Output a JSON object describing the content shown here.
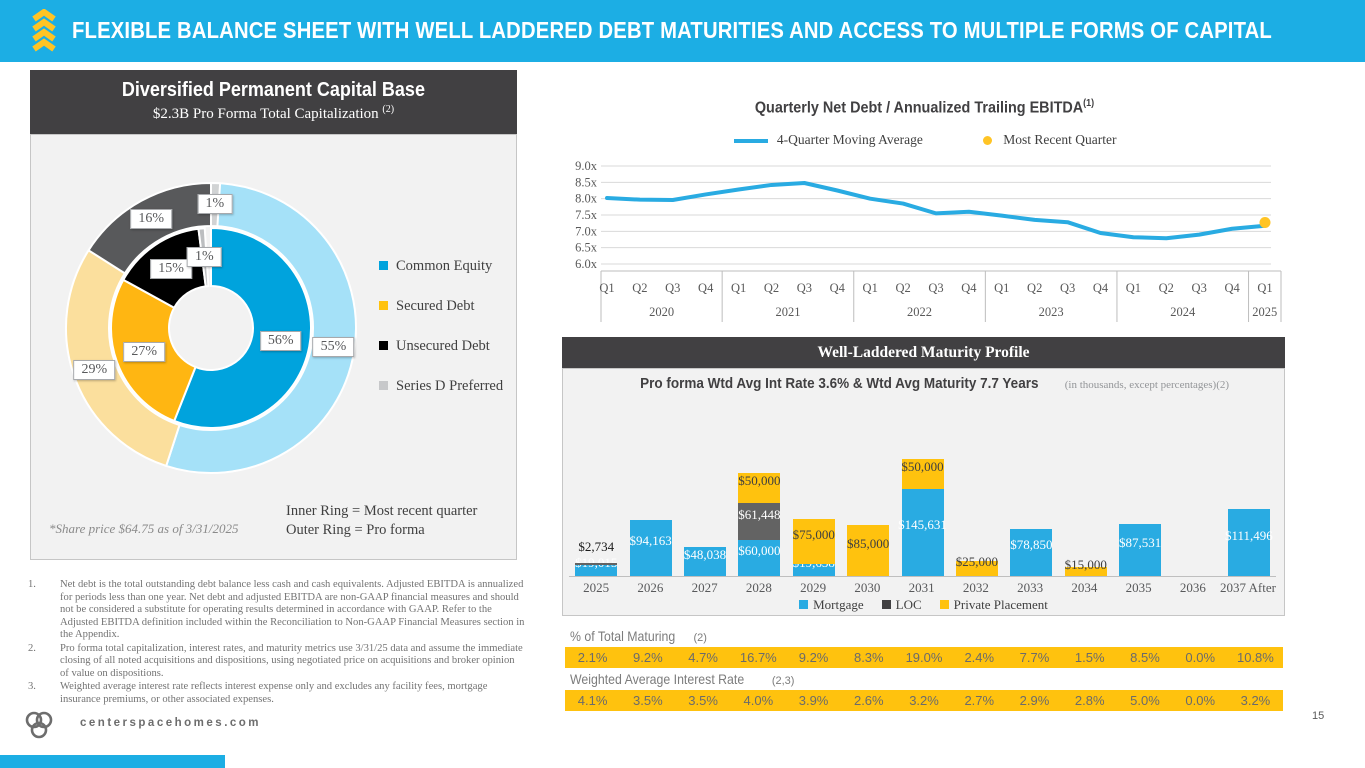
{
  "header": {
    "title": "FLEXIBLE BALANCE SHEET WITH WELL LADDERED DEBT MATURITIES AND ACCESS TO MULTIPLE FORMS OF CAPITAL"
  },
  "capital_base": {
    "title": "Diversified Permanent Capital Base",
    "subtitle": "$2.3B Pro Forma Total Capitalization",
    "subtitle_sup": "(2)",
    "share_price_note": "*Share price $64.75 as of 3/31/2025",
    "ring_note_line1": "Inner Ring = Most recent quarter",
    "ring_note_line2": "Outer Ring = Pro forma",
    "chart_data": {
      "type": "pie",
      "legend": [
        "Common Equity",
        "Secured Debt",
        "Unsecured Debt",
        "Series D Preferred"
      ],
      "legend_colors": [
        "#00A3DD",
        "#FFC20E",
        "#000000",
        "#C7C8CA"
      ],
      "rings": [
        {
          "name": "inner-most-recent-quarter",
          "labels": [
            "Common Equity",
            "Secured Debt",
            "Unsecured Debt",
            "Series D Preferred"
          ],
          "values": [
            56,
            27,
            15,
            1
          ],
          "colors": [
            "#00A3DD",
            "#FFB612",
            "#000000",
            "#BCBEC0"
          ]
        },
        {
          "name": "outer-pro-forma",
          "labels": [
            "Common Equity",
            "Secured Debt",
            "Unsecured Debt",
            "Series D Preferred"
          ],
          "values": [
            55,
            29,
            16,
            1
          ],
          "colors": [
            "#A5E1F8",
            "#FBDF9D",
            "#58595B",
            "#D1D3D4"
          ]
        }
      ]
    }
  },
  "ebitda_chart": {
    "title": "Quarterly Net Debt / Annualized Trailing EBITDA",
    "title_sup": "(1)",
    "legend_line_label": "4-Quarter Moving Average",
    "legend_dot_label": "Most Recent Quarter",
    "chart_data": {
      "type": "line",
      "series_name": "4-Quarter Moving Average",
      "x": [
        "Q1",
        "Q2",
        "Q3",
        "Q4",
        "Q1",
        "Q2",
        "Q3",
        "Q4",
        "Q1",
        "Q2",
        "Q3",
        "Q4",
        "Q1",
        "Q2",
        "Q3",
        "Q4",
        "Q1",
        "Q2",
        "Q3",
        "Q4",
        "Q1"
      ],
      "years": [
        "2020",
        "2021",
        "2022",
        "2023",
        "2024",
        "2025"
      ],
      "quarters_per_year": [
        4,
        4,
        4,
        4,
        4,
        1
      ],
      "values": [
        8.02,
        7.97,
        7.96,
        8.13,
        8.28,
        8.42,
        8.48,
        8.25,
        8.0,
        7.85,
        7.55,
        7.6,
        7.48,
        7.35,
        7.28,
        6.95,
        6.82,
        6.79,
        6.9,
        7.08,
        7.17
      ],
      "most_recent_quarter": 7.27,
      "ylim": [
        6.0,
        9.0
      ],
      "yticks": [
        "9.0x",
        "8.5x",
        "8.0x",
        "7.5x",
        "7.0x",
        "6.5x",
        "6.0x"
      ],
      "line_color": "#29ABE2",
      "dot_color": "#FFC425"
    }
  },
  "maturity": {
    "title": "Well-Laddered Maturity Profile",
    "subtitle": "Pro forma Wtd Avg Int Rate 3.6% & Wtd Avg Maturity 7.7 Years",
    "note": "(in thousands, except percentages)(2)",
    "chart_data": {
      "type": "bar",
      "stacked": true,
      "categories": [
        "2025",
        "2026",
        "2027",
        "2028",
        "2029",
        "2030",
        "2031",
        "2032",
        "2033",
        "2034",
        "2035",
        "2036",
        "2037 After"
      ],
      "series": [
        {
          "name": "Mortgage",
          "color": "#29ABE2",
          "values": [
            19015,
            94163,
            48038,
            60000,
            19638,
            0,
            145631,
            0,
            78850,
            0,
            87531,
            0,
            111496
          ]
        },
        {
          "name": "LOC",
          "color": "#636363",
          "values": [
            2734,
            0,
            0,
            61448,
            0,
            0,
            0,
            0,
            0,
            0,
            0,
            0,
            0
          ]
        },
        {
          "name": "Private Placement",
          "color": "#FFC20E",
          "values": [
            0,
            0,
            0,
            50000,
            75000,
            85000,
            50000,
            25000,
            0,
            15000,
            0,
            0,
            0
          ]
        }
      ]
    }
  },
  "tables": {
    "maturing_label": "% of Total Maturing",
    "maturing_sup": "(2)",
    "maturing_values": [
      "2.1%",
      "9.2%",
      "4.7%",
      "16.7%",
      "9.2%",
      "8.3%",
      "19.0%",
      "2.4%",
      "7.7%",
      "1.5%",
      "8.5%",
      "0.0%",
      "10.8%"
    ],
    "rate_label": "Weighted Average Interest Rate",
    "rate_sup": "(2,3)",
    "rate_values": [
      "4.1%",
      "3.5%",
      "3.5%",
      "4.0%",
      "3.9%",
      "2.6%",
      "3.2%",
      "2.7%",
      "2.9%",
      "2.8%",
      "5.0%",
      "0.0%",
      "3.2%"
    ]
  },
  "footnotes": [
    {
      "num": "1.",
      "text": "Net debt is the total outstanding debt balance less cash and cash equivalents. Adjusted EBITDA is annualized for periods less than one year. Net debt and adjusted EBITDA are non-GAAP financial measures and should not be considered a substitute for operating results determined in accordance with GAAP. Refer to the Adjusted EBITDA definition included within the Reconciliation to Non-GAAP Financial Measures section in the Appendix."
    },
    {
      "num": "2.",
      "text": "Pro forma total capitalization, interest rates, and maturity metrics use 3/31/25 data and assume the immediate closing of all noted acquisitions and dispositions, using negotiated price on acquisitions and broker opinion of value on dispositions."
    },
    {
      "num": "3.",
      "text": "Weighted average interest rate reflects interest expense only and excludes any facility fees, mortgage insurance premiums, or other associated expenses."
    }
  ],
  "footer": {
    "brand": "centerspacehomes.com",
    "page": "15"
  },
  "colors": {
    "accent_cyan": "#1CAEE4",
    "accent_yellow": "#FFC20E",
    "panel_dark": "#414042",
    "panel_light": "#F2F2F2"
  }
}
